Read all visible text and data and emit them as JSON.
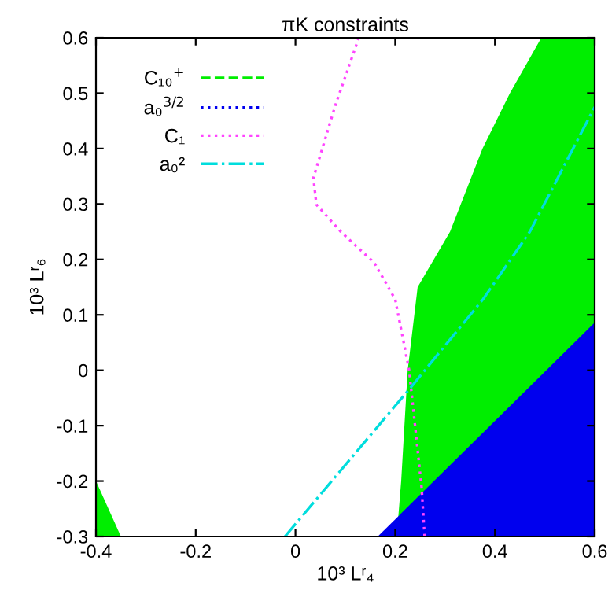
{
  "chart_data": {
    "type": "area",
    "title": "πK constraints",
    "xlabel": "10³ Lʳ₄",
    "ylabel": "10³ Lʳ₆",
    "xlim": [
      -0.4,
      0.6
    ],
    "ylim": [
      -0.3,
      0.6
    ],
    "xticks": [
      -0.4,
      -0.2,
      0,
      0.2,
      0.4,
      0.6
    ],
    "yticks": [
      -0.3,
      -0.2,
      -0.1,
      0,
      0.1,
      0.2,
      0.3,
      0.4,
      0.5,
      0.6
    ],
    "grid": false,
    "legend": "top left",
    "series": [
      {
        "name": "C₁₀$^{+}$",
        "color": "#00ee00",
        "line_style": "dashed",
        "x": [
          0.203,
          0.212,
          0.225,
          0.245,
          0.31,
          0.375,
          0.43,
          0.493,
          0.6,
          0.6
        ],
        "values": [
          -0.3,
          -0.2,
          0,
          0.15,
          0.25,
          0.4,
          0.5,
          0.6,
          0.6,
          -0.3
        ]
      },
      {
        "color": "#00ee00",
        "x": [
          -0.4,
          -0.35
        ],
        "values": [
          -0.2,
          -0.3
        ]
      },
      {
        "name": "a₀$^{3/2}$",
        "color": "#0000ee",
        "line_style": "dotted",
        "x": [
          0.165,
          0.6
        ],
        "values": [
          -0.3,
          0.086
        ]
      },
      {
        "name": "C₁",
        "type": "line",
        "color": "#ff44ff",
        "line_style": "dotted",
        "x": [
          0.127,
          0.08,
          0.036,
          0.042,
          0.091,
          0.158,
          0.2,
          0.228,
          0.253,
          0.259
        ],
        "values": [
          0.6,
          0.478,
          0.347,
          0.299,
          0.25,
          0.194,
          0.128,
          0.0,
          -0.212,
          -0.3
        ]
      },
      {
        "name": "a₀²",
        "type": "line",
        "color": "#00dddd",
        "line_style": "dashdot",
        "x": [
          -0.021,
          0.234,
          0.376,
          0.47,
          0.6
        ],
        "values": [
          -0.3,
          -0.028,
          0.128,
          0.25,
          0.475
        ]
      }
    ]
  }
}
